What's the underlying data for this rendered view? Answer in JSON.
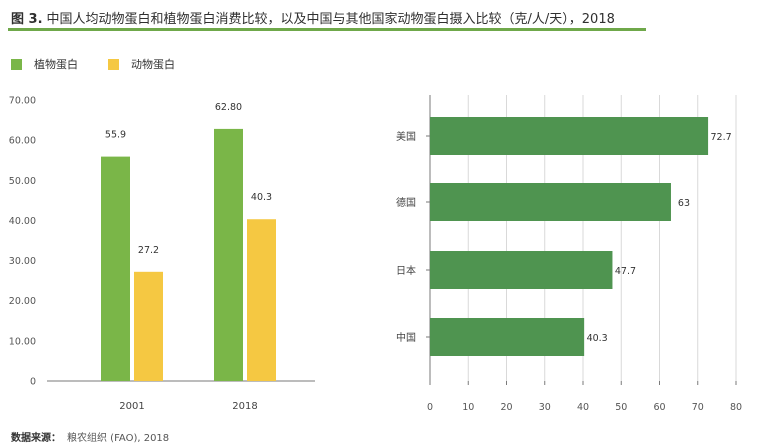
{
  "figure": {
    "number": "图 3.",
    "title": "中国人均动物蛋白和植物蛋白消费比较，以及中国与其他国家动物蛋白摄入比较（克/人/天），2018"
  },
  "colors": {
    "green_bar": "#7ab648",
    "yellow_bar": "#f5c842",
    "hbar_green": "#4f9450",
    "title_rule": "#6fa84a",
    "axis": "#7a7a7a",
    "grid": "#d9d9d9"
  },
  "legend": [
    {
      "label": "植物蛋白",
      "color": "#7ab648"
    },
    {
      "label": "动物蛋白",
      "color": "#f5c842"
    }
  ],
  "source": {
    "label": "数据来源：",
    "text": "粮农组织 (FAO), 2018"
  },
  "chart_data": [
    {
      "type": "bar",
      "categories": [
        "2001",
        "2018"
      ],
      "series": [
        {
          "name": "植物蛋白",
          "values": [
            55.9,
            62.8
          ],
          "labels": [
            "55.9",
            "62.80"
          ],
          "color": "#7ab648"
        },
        {
          "name": "动物蛋白",
          "values": [
            27.2,
            40.3
          ],
          "labels": [
            "27.2",
            "40.3"
          ],
          "color": "#f5c842"
        }
      ],
      "ylim": [
        0,
        70
      ],
      "yticks": [
        0,
        10,
        20,
        30,
        40,
        50,
        60,
        70
      ],
      "ytick_labels": [
        "0",
        "10.00",
        "20.00",
        "30.00",
        "40.00",
        "50.00",
        "60.00",
        "70.00"
      ],
      "grid": false,
      "legend": "top-left"
    },
    {
      "type": "bar",
      "orientation": "horizontal",
      "categories": [
        "美国",
        "德国",
        "日本",
        "中国"
      ],
      "values": [
        72.7,
        63,
        47.7,
        40.3
      ],
      "labels": [
        "72.7",
        "63",
        "47.7",
        "40.3"
      ],
      "xlim": [
        0,
        80
      ],
      "xticks": [
        0,
        10,
        20,
        30,
        40,
        50,
        60,
        70,
        80
      ],
      "grid": true,
      "color": "#4f9450"
    }
  ]
}
